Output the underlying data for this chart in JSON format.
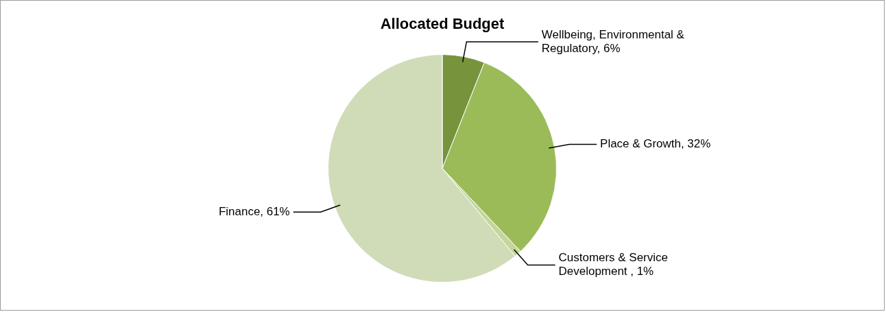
{
  "chart_data": {
    "type": "pie",
    "title": "Allocated Budget",
    "categories": [
      "Wellbeing, Environmental & Regulatory",
      "Place & Growth",
      "Customers & Service Development ",
      "Finance"
    ],
    "values": [
      6,
      32,
      1,
      61
    ],
    "value_labels": [
      "6%",
      "32%",
      "1%",
      "61%"
    ],
    "colors": [
      "#77933c",
      "#9bbb59",
      "#c3d69b",
      "#d0dcb8"
    ],
    "legend": false
  }
}
